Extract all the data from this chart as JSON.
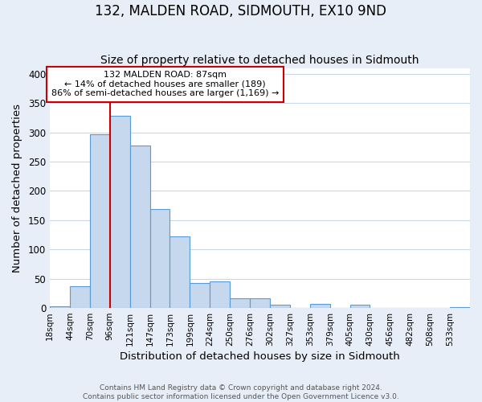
{
  "title": "132, MALDEN ROAD, SIDMOUTH, EX10 9ND",
  "subtitle": "Size of property relative to detached houses in Sidmouth",
  "xlabel": "Distribution of detached houses by size in Sidmouth",
  "ylabel": "Number of detached properties",
  "bar_labels": [
    "18sqm",
    "44sqm",
    "70sqm",
    "96sqm",
    "121sqm",
    "147sqm",
    "173sqm",
    "199sqm",
    "224sqm",
    "250sqm",
    "276sqm",
    "302sqm",
    "327sqm",
    "353sqm",
    "379sqm",
    "405sqm",
    "430sqm",
    "456sqm",
    "482sqm",
    "508sqm",
    "533sqm"
  ],
  "bar_values": [
    3,
    37,
    297,
    329,
    278,
    169,
    123,
    42,
    45,
    16,
    17,
    5,
    0,
    7,
    0,
    6,
    0,
    0,
    0,
    0,
    2
  ],
  "bar_color": "#c5d8ed",
  "bar_edge_color": "#5b9bd5",
  "vline_x_idx": 3,
  "annotation_title": "132 MALDEN ROAD: 87sqm",
  "annotation_line1": "← 14% of detached houses are smaller (189)",
  "annotation_line2": "86% of semi-detached houses are larger (1,169) →",
  "annotation_box_color": "#ffffff",
  "annotation_box_edge_color": "#cc0000",
  "vline_color": "#cc0000",
  "ylim": [
    0,
    410
  ],
  "footer1": "Contains HM Land Registry data © Crown copyright and database right 2024.",
  "footer2": "Contains public sector information licensed under the Open Government Licence v3.0.",
  "background_color": "#e8eef7",
  "plot_bg_color": "#ffffff",
  "grid_color": "#c8d8ec",
  "title_fontsize": 12,
  "subtitle_fontsize": 10,
  "axis_label_fontsize": 9.5,
  "tick_fontsize": 7.5
}
